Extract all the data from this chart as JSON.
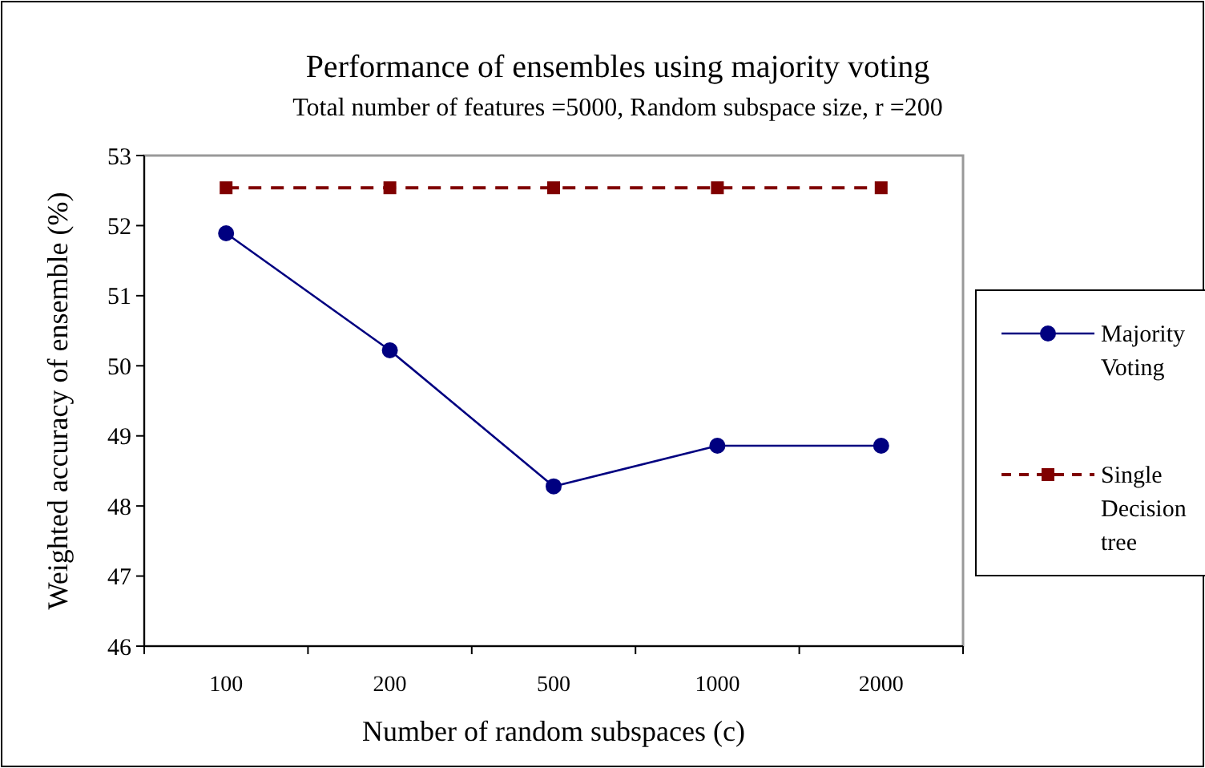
{
  "chart_data": {
    "type": "line",
    "title": "Performance of ensembles using majority voting",
    "subtitle": "Total number of features =5000, Random subspace size, r =200",
    "xlabel": "Number of random subspaces (c)",
    "ylabel": "Weighted accuracy of ensemble (%)",
    "categories": [
      "100",
      "200",
      "500",
      "1000",
      "2000"
    ],
    "series": [
      {
        "name": "Majority Voting",
        "color": "#000080",
        "values": [
          51.89,
          50.22,
          48.28,
          48.86,
          48.86
        ],
        "marker": "circle",
        "line_style": "solid"
      },
      {
        "name": "Single Decision tree",
        "color": "#800000",
        "values": [
          52.54,
          52.54,
          52.54,
          52.54,
          52.54
        ],
        "marker": "square",
        "line_style": "dashed"
      }
    ],
    "ylim": [
      46,
      53
    ],
    "yticks": [
      46,
      47,
      48,
      49,
      50,
      51,
      52,
      53
    ],
    "grid": false,
    "legend": "right"
  }
}
